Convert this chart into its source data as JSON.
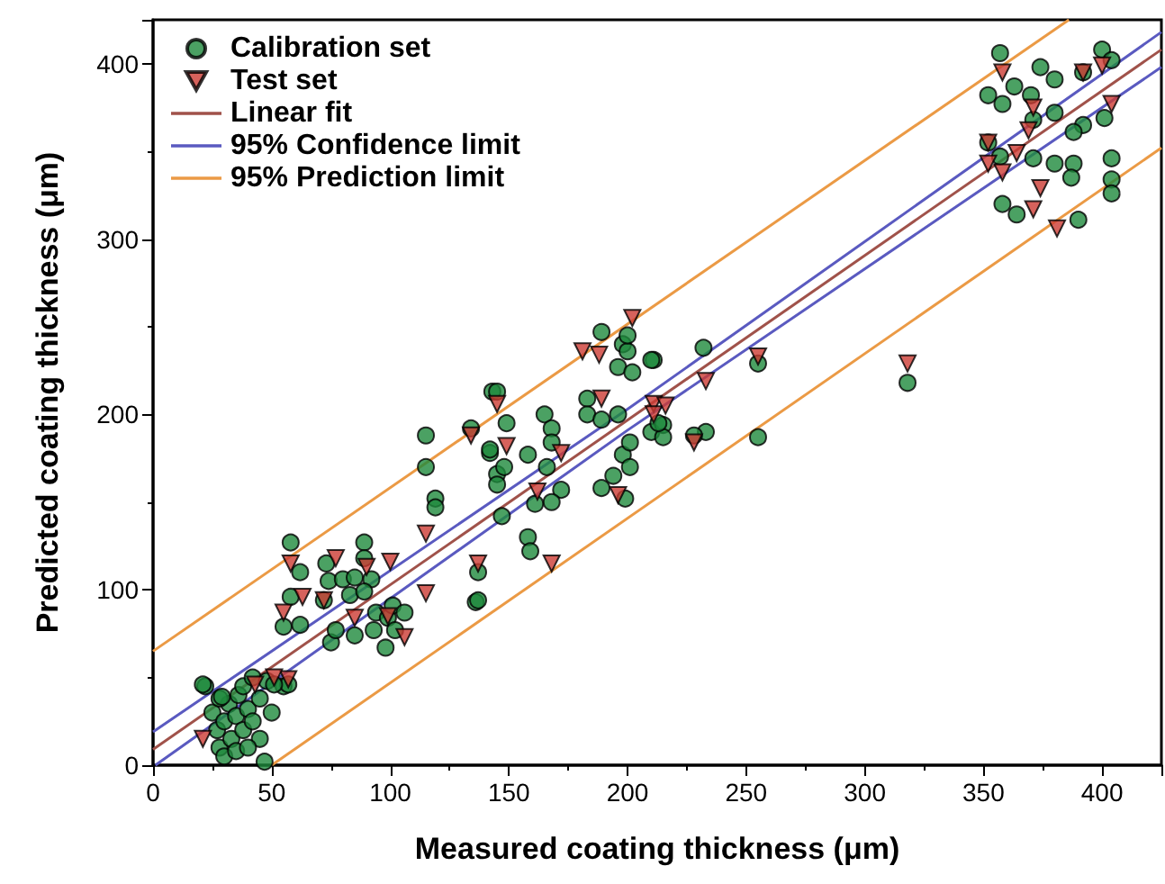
{
  "chart_data": {
    "type": "scatter",
    "xlabel": "Measured coating thickness (μm)",
    "ylabel": "Predicted coating thickness (μm)",
    "xlim": [
      0,
      425
    ],
    "ylim": [
      0,
      425
    ],
    "xticks": [
      0,
      50,
      100,
      150,
      200,
      250,
      300,
      350,
      400
    ],
    "yticks": [
      0,
      100,
      200,
      300,
      400
    ],
    "grid": false,
    "legend": "top left",
    "series": [
      {
        "name": "Calibration set",
        "marker": "circle",
        "color": "#1e8a3c",
        "x": [
          22,
          25,
          27,
          28,
          30,
          30,
          32,
          33,
          35,
          36,
          38,
          38,
          40,
          42,
          42,
          45,
          45,
          47,
          48,
          50,
          55,
          28,
          35,
          40,
          21,
          29,
          58,
          62,
          58,
          55,
          62,
          57,
          51,
          73,
          72,
          74,
          80,
          83,
          85,
          89,
          89,
          92,
          89,
          94,
          99,
          101,
          106,
          102,
          98,
          93,
          85,
          75,
          77,
          115,
          115,
          119,
          119,
          136,
          134,
          143,
          142,
          145,
          145,
          149,
          142,
          148,
          145,
          147,
          158,
          158,
          159,
          165,
          168,
          168,
          166,
          172,
          168,
          161,
          137,
          137,
          183,
          189,
          198,
          200,
          211,
          196,
          202,
          183,
          189,
          196,
          198,
          201,
          201,
          210,
          215,
          215,
          189,
          199,
          194,
          255,
          255,
          318,
          232,
          233,
          228,
          200,
          210,
          213,
          357,
          352,
          358,
          363,
          370,
          374,
          380,
          400,
          404,
          392,
          380,
          371,
          352,
          357,
          371,
          380,
          388,
          387,
          401,
          392,
          388,
          404,
          404,
          404,
          358,
          364,
          390
        ],
        "values": [
          45,
          30,
          20,
          10,
          5,
          25,
          35,
          15,
          28,
          40,
          20,
          45,
          32,
          25,
          50,
          38,
          15,
          2,
          48,
          30,
          45,
          38,
          8,
          10,
          46,
          39,
          127,
          110,
          96,
          79,
          80,
          46,
          46,
          115,
          94,
          105,
          106,
          97,
          107,
          127,
          118,
          106,
          99,
          87,
          84,
          91,
          87,
          77,
          67,
          77,
          74,
          70,
          77,
          188,
          170,
          152,
          147,
          93,
          192,
          213,
          178,
          166,
          213,
          195,
          180,
          170,
          160,
          142,
          177,
          130,
          122,
          200,
          192,
          184,
          170,
          157,
          150,
          149,
          94,
          110,
          209,
          247,
          240,
          236,
          231,
          227,
          224,
          200,
          197,
          200,
          177,
          170,
          184,
          190,
          194,
          187,
          158,
          152,
          165,
          229,
          187,
          218,
          238,
          190,
          188,
          245,
          231,
          195,
          406,
          382,
          377,
          387,
          382,
          398,
          391,
          408,
          402,
          395,
          372,
          368,
          355,
          347,
          346,
          343,
          343,
          335,
          369,
          365,
          361,
          346,
          334,
          326,
          320,
          314,
          311
        ]
      },
      {
        "name": "Test set",
        "marker": "triangle",
        "color": "#cc3b33",
        "x": [
          21,
          43,
          57,
          51,
          58,
          63,
          55,
          72,
          77,
          90,
          100,
          85,
          99,
          106,
          115,
          115,
          137,
          145,
          134,
          149,
          168,
          181,
          188,
          202,
          189,
          172,
          196,
          211,
          162,
          255,
          318,
          233,
          228,
          211,
          216,
          352,
          352,
          358,
          364,
          369,
          371,
          374,
          371,
          381,
          392,
          400,
          404,
          358
        ],
        "values": [
          15,
          46,
          49,
          50,
          115,
          96,
          87,
          94,
          118,
          113,
          116,
          84,
          85,
          73,
          132,
          98,
          115,
          206,
          188,
          182,
          115,
          236,
          234,
          255,
          209,
          178,
          154,
          206,
          156,
          233,
          229,
          219,
          184,
          200,
          205,
          355,
          343,
          338,
          349,
          362,
          375,
          329,
          317,
          306,
          395,
          399,
          377,
          395
        ]
      },
      {
        "name": "Linear fit",
        "type": "line",
        "marker": "none",
        "color": "#a0524a",
        "x": [
          0,
          425
        ],
        "values": [
          9,
          408
        ]
      },
      {
        "name": "95% Confidence limit",
        "type": "line",
        "marker": "none",
        "color": "#5a5ac0",
        "x": [
          0,
          200,
          425
        ],
        "values": [
          19,
          203,
          418
        ]
      },
      {
        "type": "line",
        "marker": "none",
        "color": "#5a5ac0",
        "x": [
          1,
          200,
          425
        ],
        "values": [
          0,
          191,
          398
        ]
      },
      {
        "name": "95% Prediction limit",
        "type": "line",
        "marker": "none",
        "color": "#eb9a45",
        "x": [
          0,
          386
        ],
        "values": [
          65,
          425
        ]
      },
      {
        "type": "line",
        "marker": "none",
        "color": "#eb9a45",
        "x": [
          50,
          425
        ],
        "values": [
          0,
          352
        ]
      }
    ]
  }
}
